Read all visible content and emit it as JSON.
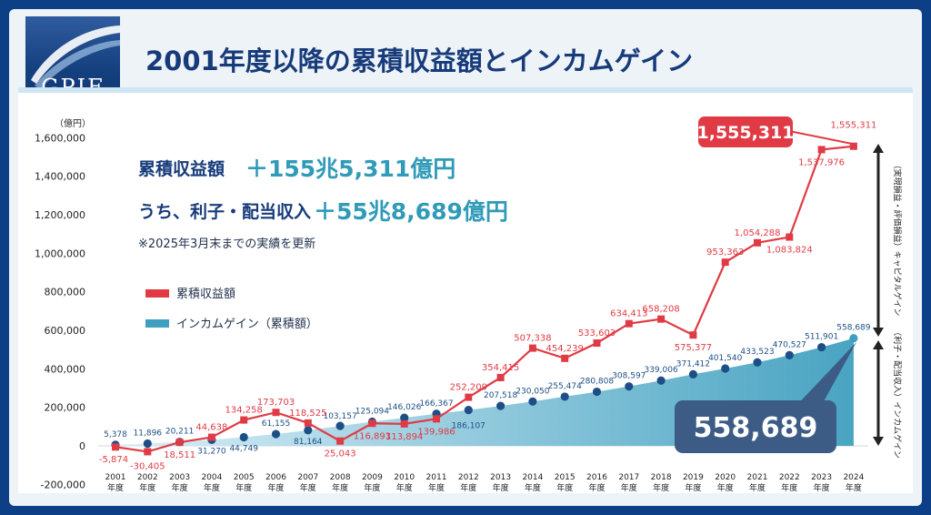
{
  "header": {
    "logo_text": "GPIF",
    "title": "2001年度以降の累積収益額とインカムゲイン"
  },
  "summary": {
    "line1_label": "累積収益額",
    "line1_value": "＋155兆5,311億円",
    "line2_label": "うち、利子・配当収入",
    "line2_value": "＋55兆8,689億円",
    "note": "※2025年3月末までの実績を更新"
  },
  "callouts": {
    "cumulative": "1,555,311",
    "income": "558,689"
  },
  "side_labels": {
    "upper": "（実現損益・評価損益）キャピタルゲイン",
    "lower": "（利子・配当収入）インカムゲイン"
  },
  "colors": {
    "cumulative": "#e03b45",
    "income": "#3f9fbf",
    "income_marker": "#1d4f86",
    "title": "#173b7a"
  },
  "chart_data": {
    "type": "line",
    "yunit": "（億円）",
    "ylim": [
      -200000,
      1600000
    ],
    "yticks": [
      -200000,
      0,
      200000,
      400000,
      600000,
      800000,
      1000000,
      1200000,
      1400000,
      1600000
    ],
    "ytick_labels": [
      "-200,000",
      "0",
      "200,000",
      "400,000",
      "600,000",
      "800,000",
      "1,000,000",
      "1,200,000",
      "1,400,000",
      "1,600,000"
    ],
    "x": [
      "2001",
      "2002",
      "2003",
      "2004",
      "2005",
      "2006",
      "2007",
      "2008",
      "2009",
      "2010",
      "2011",
      "2012",
      "2013",
      "2014",
      "2015",
      "2016",
      "2017",
      "2018",
      "2019",
      "2020",
      "2021",
      "2022",
      "2023",
      "2024"
    ],
    "x_suffix": "年度",
    "legend_position": "left",
    "grid": false,
    "series": [
      {
        "name": "累積収益額",
        "values": [
          -5874,
          -30405,
          18511,
          44638,
          134258,
          173703,
          118525,
          25043,
          116893,
          113894,
          139986,
          252209,
          354415,
          507338,
          454239,
          533603,
          634413,
          658208,
          575377,
          953363,
          1054288,
          1083824,
          1537976,
          1555311
        ],
        "labels": [
          "-5,874",
          "-30,405",
          "18,511",
          "44,638",
          "134,258",
          "173,703",
          "118,525",
          "25,043",
          "116,893",
          "113,894",
          "139,986",
          "252,209",
          "354,415",
          "507,338",
          "454,239",
          "533,603",
          "634,413",
          "658,208",
          "575,377",
          "953,363",
          "1,054,288",
          "1,083,824",
          "1,537,976",
          "1,555,311"
        ]
      },
      {
        "name": "インカムゲイン（累積額）",
        "values": [
          5378,
          11896,
          20211,
          31270,
          44749,
          61155,
          81164,
          103157,
          125094,
          146026,
          166367,
          186107,
          207518,
          230050,
          255474,
          280808,
          308597,
          339006,
          371412,
          401540,
          433523,
          470527,
          511901,
          558689
        ],
        "labels": [
          "5,378",
          "11,896",
          "20,211",
          "31,270",
          "44,749",
          "61,155",
          "81,164",
          "103,157",
          "125,094",
          "146,026",
          "166,367",
          "186,107",
          "207,518",
          "230,050",
          "255,474",
          "280,808",
          "308,597",
          "339,006",
          "371,412",
          "401,540",
          "433,523",
          "470,527",
          "511,901",
          "558,689"
        ]
      }
    ]
  }
}
